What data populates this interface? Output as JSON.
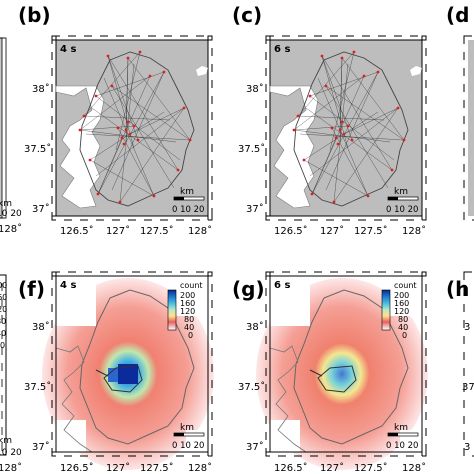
{
  "panels": {
    "b": {
      "letter": "(b)",
      "time": "4 s"
    },
    "c": {
      "letter": "(c)",
      "time": "6 s"
    },
    "d": {
      "letter": "(d"
    },
    "f": {
      "letter": "(f)",
      "time": "4 s"
    },
    "g": {
      "letter": "(g)",
      "time": "6 s"
    },
    "h": {
      "letter": "(h"
    }
  },
  "axes": {
    "x_ticks": [
      "126.5˚",
      "127˚",
      "127.5˚",
      "128˚"
    ],
    "x_ticks_first_cut": "128˚",
    "y_ticks": [
      "38˚",
      "37.5˚",
      "37˚"
    ],
    "y_ticks_right_cut": [
      "3",
      "37",
      "3"
    ]
  },
  "scale_bar": {
    "unit": "km",
    "ticks": "0 10 20",
    "ticks_cut": "10 20"
  },
  "colorbar": {
    "title": "count",
    "ticks": [
      "200",
      "160",
      "120",
      "80",
      "40",
      "0"
    ],
    "left_cut_ticks": [
      "200",
      "160",
      "120",
      "80",
      "40",
      "0"
    ],
    "colors": [
      "#0b2a8c",
      "#1f7fd4",
      "#4fc3e0",
      "#bfe7c8",
      "#ffe089",
      "#f6a07a",
      "#ea6060",
      "#ffffff"
    ]
  }
}
